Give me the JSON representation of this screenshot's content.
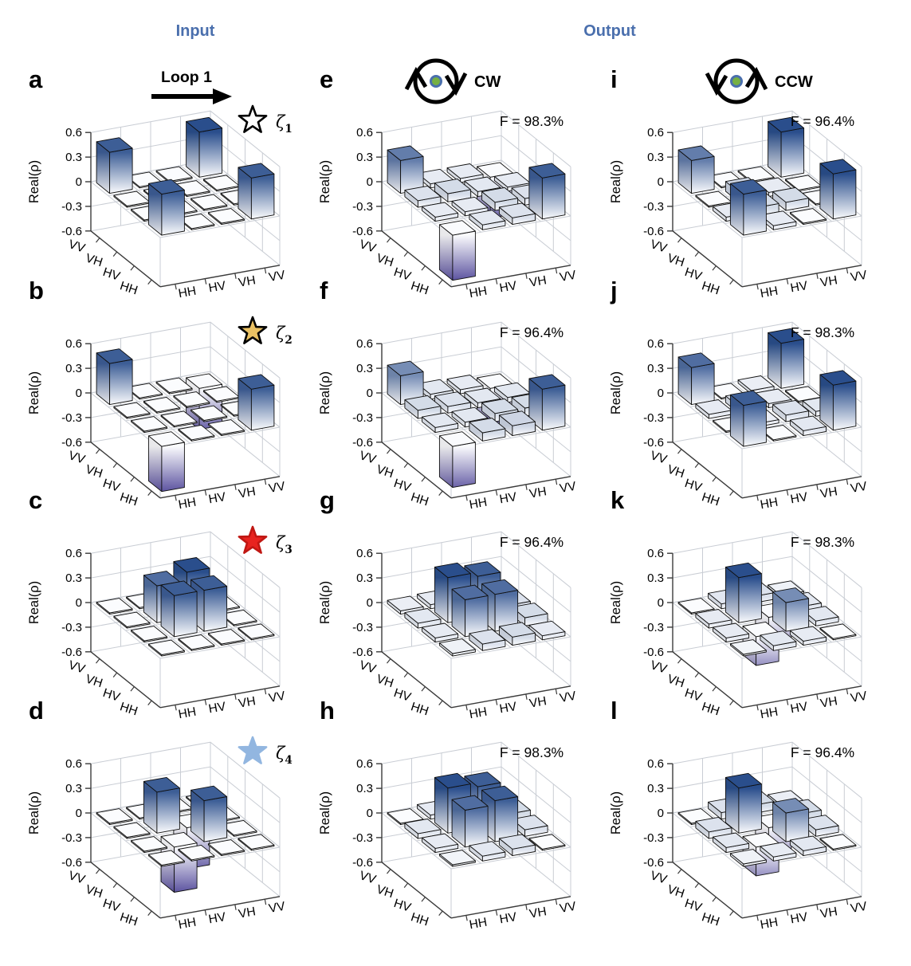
{
  "header": {
    "input_label": "Input",
    "output_label": "Output",
    "loop_label": "Loop 1",
    "cw_label": "CW",
    "ccw_label": "CCW"
  },
  "colors": {
    "header_blue": "#4a6fad",
    "bar_positive_top": "#2a4e8c",
    "bar_negative_bottom": "#5c53a0",
    "bar_zero_white": "#fbfcfe",
    "grid_gray": "#c9cdd4",
    "axis_dark": "#3a3a3a",
    "dot_green": "#76b043",
    "star_zeta1_fill": "#ffffff",
    "star_zeta1_stroke": "#000000",
    "star_zeta2_fill": "#eac163",
    "star_zeta2_stroke": "#000000",
    "star_zeta3_fill": "#e8231f",
    "star_zeta3_stroke": "#c01713",
    "star_zeta4_fill": "#92b6e0",
    "star_zeta4_stroke": "#92b6e0"
  },
  "axis": {
    "z_label": "Real(ρ)",
    "z_ticks": [
      "0.6",
      "0.3",
      "0",
      "-0.3",
      "-0.6"
    ],
    "z_tick_values": [
      0.6,
      0.3,
      0,
      -0.3,
      -0.6
    ],
    "zlim": [
      -0.6,
      0.6
    ],
    "y_tick_labels_top_to_bottom": [
      "VV",
      "VH",
      "HV",
      "HH"
    ],
    "x_tick_labels_left_to_right": [
      "HH",
      "HV",
      "VH",
      "VV"
    ]
  },
  "chart_data": [
    {
      "id": "a",
      "letter": "a",
      "type": "bar3d",
      "group": "input",
      "annotation_type": "star",
      "star": "zeta1",
      "zeta_symbol": "ζ",
      "zeta_sub": "1",
      "has_loop_arrow": true,
      "rows_front_axis": [
        "HH",
        "HV",
        "VH",
        "VV"
      ],
      "cols_right_axis": [
        "HH",
        "HV",
        "VH",
        "VV"
      ],
      "matrix": [
        [
          0.5,
          0,
          0,
          0.5
        ],
        [
          0,
          0,
          0,
          0
        ],
        [
          0,
          0,
          0,
          0
        ],
        [
          0.5,
          0,
          0,
          0.55
        ]
      ]
    },
    {
      "id": "b",
      "letter": "b",
      "type": "bar3d",
      "group": "input",
      "annotation_type": "star",
      "star": "zeta2",
      "zeta_symbol": "ζ",
      "zeta_sub": "2",
      "rows_front_axis": [
        "HH",
        "HV",
        "VH",
        "VV"
      ],
      "cols_right_axis": [
        "HH",
        "HV",
        "VH",
        "VV"
      ],
      "matrix": [
        [
          -0.55,
          0,
          0,
          0.5
        ],
        [
          0,
          0,
          0,
          0
        ],
        [
          0,
          0,
          0,
          0
        ],
        [
          0.5,
          0,
          0,
          -0.5
        ]
      ]
    },
    {
      "id": "c",
      "letter": "c",
      "type": "bar3d",
      "group": "input",
      "annotation_type": "star",
      "star": "zeta3",
      "zeta_symbol": "ζ",
      "zeta_sub": "3",
      "rows_front_axis": [
        "HH",
        "HV",
        "VH",
        "VV"
      ],
      "cols_right_axis": [
        "HH",
        "HV",
        "VH",
        "VV"
      ],
      "matrix": [
        [
          0,
          0,
          0,
          0
        ],
        [
          0,
          0.5,
          0.5,
          0
        ],
        [
          0,
          0.45,
          0.55,
          0
        ],
        [
          0,
          0,
          0,
          0
        ]
      ]
    },
    {
      "id": "d",
      "letter": "d",
      "type": "bar3d",
      "group": "input",
      "annotation_type": "star",
      "star": "zeta4",
      "zeta_symbol": "ζ",
      "zeta_sub": "4",
      "rows_front_axis": [
        "HH",
        "HV",
        "VH",
        "VV"
      ],
      "cols_right_axis": [
        "HH",
        "HV",
        "VH",
        "VV"
      ],
      "matrix": [
        [
          0,
          0,
          0,
          0
        ],
        [
          0,
          -0.55,
          0.5,
          0
        ],
        [
          0,
          0.5,
          -0.5,
          0
        ],
        [
          0,
          0,
          0,
          0
        ]
      ]
    },
    {
      "id": "e",
      "letter": "e",
      "type": "bar3d",
      "group": "output-cw",
      "annotation_type": "fidelity",
      "fidelity": "F = 98.3%",
      "icon_type": "cw",
      "icon_label": "CW",
      "rows_front_axis": [
        "HH",
        "HV",
        "VH",
        "VV"
      ],
      "cols_right_axis": [
        "HH",
        "HV",
        "VH",
        "VV"
      ],
      "matrix": [
        [
          -0.55,
          0.06,
          0.08,
          0.5
        ],
        [
          0.05,
          0.05,
          0.1,
          0.08
        ],
        [
          0.08,
          0.1,
          0.06,
          0.05
        ],
        [
          0.4,
          0.05,
          0.05,
          -0.5
        ]
      ]
    },
    {
      "id": "f",
      "letter": "f",
      "type": "bar3d",
      "group": "output-cw",
      "annotation_type": "fidelity",
      "fidelity": "F = 96.4%",
      "rows_front_axis": [
        "HH",
        "HV",
        "VH",
        "VV"
      ],
      "cols_right_axis": [
        "HH",
        "HV",
        "VH",
        "VV"
      ],
      "matrix": [
        [
          -0.5,
          0.1,
          0.12,
          0.5
        ],
        [
          0.06,
          0.06,
          0.1,
          0.1
        ],
        [
          0.1,
          0.08,
          0.06,
          0.06
        ],
        [
          0.35,
          0.06,
          0.05,
          -0.45
        ]
      ]
    },
    {
      "id": "g",
      "letter": "g",
      "type": "bar3d",
      "group": "output-cw",
      "annotation_type": "fidelity",
      "fidelity": "F = 96.4%",
      "rows_front_axis": [
        "HH",
        "HV",
        "VH",
        "VV"
      ],
      "cols_right_axis": [
        "HH",
        "HV",
        "VH",
        "VV"
      ],
      "matrix": [
        [
          0.03,
          0.08,
          0.1,
          0.05
        ],
        [
          0.05,
          0.45,
          0.45,
          0.1
        ],
        [
          0.06,
          0.55,
          0.5,
          0.08
        ],
        [
          0.04,
          0.05,
          0.06,
          0.03
        ]
      ]
    },
    {
      "id": "h",
      "letter": "h",
      "type": "bar3d",
      "group": "output-cw",
      "annotation_type": "fidelity",
      "fidelity": "F = 98.3%",
      "rows_front_axis": [
        "HH",
        "HV",
        "VH",
        "VV"
      ],
      "cols_right_axis": [
        "HH",
        "HV",
        "VH",
        "VV"
      ],
      "matrix": [
        [
          0.02,
          0.06,
          0.08,
          0
        ],
        [
          0.05,
          0.45,
          0.5,
          0.08
        ],
        [
          0.06,
          0.55,
          0.5,
          0.1
        ],
        [
          0,
          0.05,
          0.06,
          0.02
        ]
      ]
    },
    {
      "id": "i",
      "letter": "i",
      "type": "bar3d",
      "group": "output-ccw",
      "annotation_type": "fidelity",
      "fidelity": "F = 96.4%",
      "icon_type": "ccw",
      "icon_label": "CCW",
      "rows_front_axis": [
        "HH",
        "HV",
        "VH",
        "VV"
      ],
      "cols_right_axis": [
        "HH",
        "HV",
        "VH",
        "VV"
      ],
      "matrix": [
        [
          0.5,
          0.05,
          0,
          0.55
        ],
        [
          0.05,
          0.1,
          0.1,
          0
        ],
        [
          0,
          0.12,
          0.05,
          0
        ],
        [
          0.4,
          0,
          0,
          0.55
        ]
      ]
    },
    {
      "id": "j",
      "letter": "j",
      "type": "bar3d",
      "group": "output-ccw",
      "annotation_type": "fidelity",
      "fidelity": "F = 98.3%",
      "rows_front_axis": [
        "HH",
        "HV",
        "VH",
        "VV"
      ],
      "cols_right_axis": [
        "HH",
        "HV",
        "VH",
        "VV"
      ],
      "matrix": [
        [
          0.5,
          0,
          0.06,
          0.55
        ],
        [
          0,
          0.04,
          0.08,
          0.06
        ],
        [
          0.05,
          0.08,
          0.05,
          0
        ],
        [
          0.45,
          0,
          0.04,
          0.55
        ]
      ]
    },
    {
      "id": "k",
      "letter": "k",
      "type": "bar3d",
      "group": "output-ccw",
      "annotation_type": "fidelity",
      "fidelity": "F = 98.3%",
      "rows_front_axis": [
        "HH",
        "HV",
        "VH",
        "VV"
      ],
      "cols_right_axis": [
        "HH",
        "HV",
        "VH",
        "VV"
      ],
      "matrix": [
        [
          0.02,
          0.06,
          0.05,
          0
        ],
        [
          0.05,
          -0.35,
          0.35,
          0.06
        ],
        [
          0.05,
          0.55,
          -0.3,
          0.06
        ],
        [
          0,
          0.06,
          0.08,
          0.03
        ]
      ]
    },
    {
      "id": "l",
      "letter": "l",
      "type": "bar3d",
      "group": "output-ccw",
      "annotation_type": "fidelity",
      "fidelity": "F = 96.4%",
      "rows_front_axis": [
        "HH",
        "HV",
        "VH",
        "VV"
      ],
      "cols_right_axis": [
        "HH",
        "HV",
        "VH",
        "VV"
      ],
      "matrix": [
        [
          0.03,
          0.05,
          0.06,
          0
        ],
        [
          0.06,
          -0.35,
          0.35,
          0.08
        ],
        [
          0.08,
          0.55,
          -0.3,
          0.1
        ],
        [
          0,
          0.08,
          0.1,
          0.04
        ]
      ]
    }
  ]
}
